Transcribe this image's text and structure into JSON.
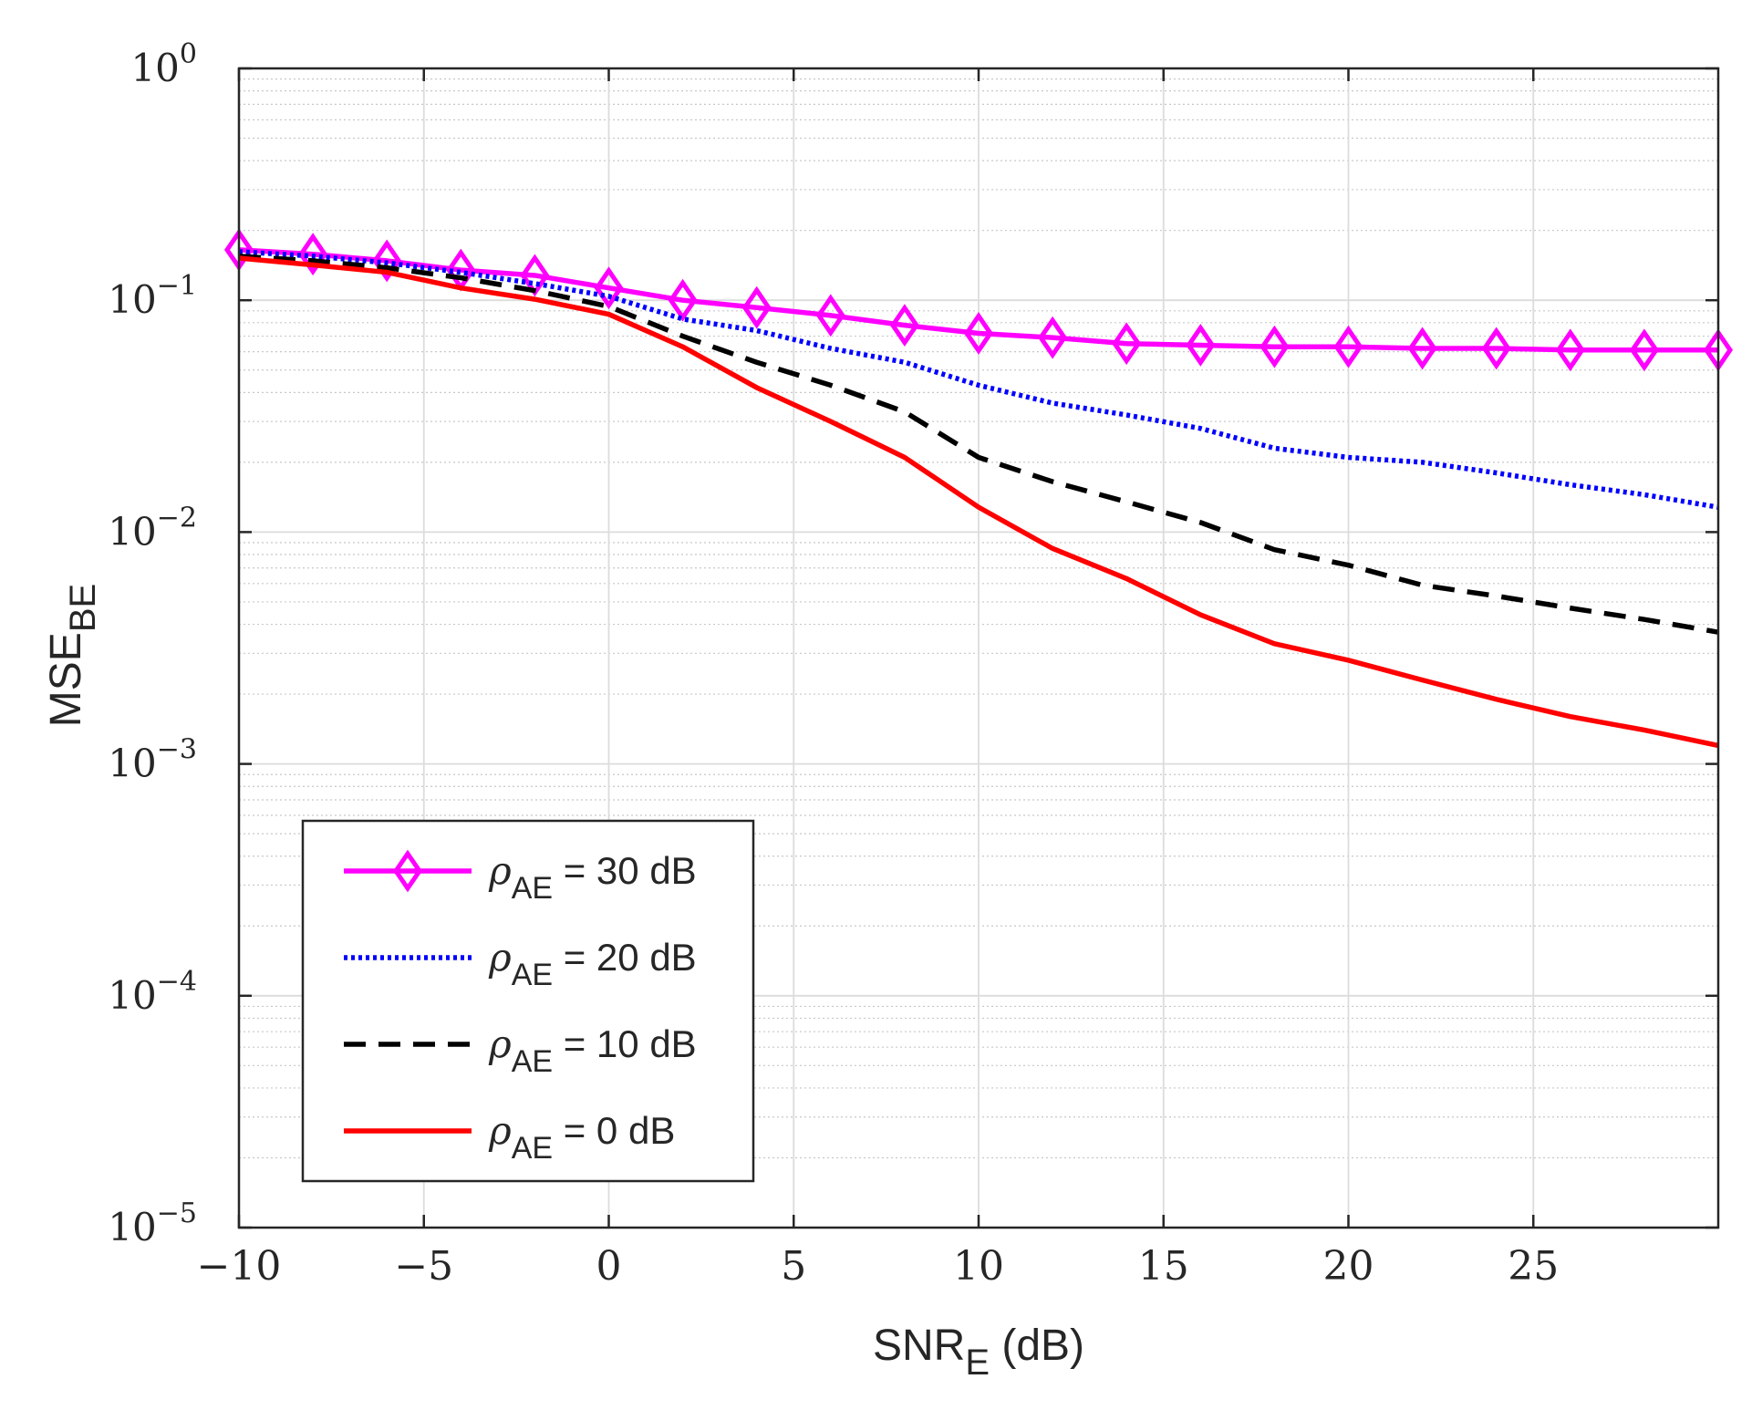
{
  "chart_data": {
    "type": "line",
    "yscale": "log",
    "xlim": [
      -10,
      30
    ],
    "ylim": [
      1e-05,
      1
    ],
    "grid": true,
    "minor_grid": true,
    "xlabel": {
      "main": "SNR",
      "sub": "E",
      "suffix": " (dB)"
    },
    "ylabel": {
      "main": "MSE",
      "sub": "BE"
    },
    "xticks": [
      -10,
      -5,
      0,
      5,
      10,
      15,
      20,
      25
    ],
    "xtick_labels": [
      "−10",
      "−5",
      "0",
      "5",
      "10",
      "15",
      "20",
      "25"
    ],
    "yticks": [
      1e-05,
      0.0001,
      0.001,
      0.01,
      0.1,
      1
    ],
    "ytick_labels": [
      {
        "base": "10",
        "exp": "−5"
      },
      {
        "base": "10",
        "exp": "−4"
      },
      {
        "base": "10",
        "exp": "−3"
      },
      {
        "base": "10",
        "exp": "−2"
      },
      {
        "base": "10",
        "exp": "−1"
      },
      {
        "base": "10",
        "exp": "0"
      }
    ],
    "x": [
      -10,
      -8,
      -6,
      -4,
      -2,
      0,
      2,
      4,
      6,
      8,
      10,
      12,
      14,
      16,
      18,
      20,
      22,
      24,
      26,
      28,
      30
    ],
    "legend_position": "bottom-left",
    "series": [
      {
        "name": "ρAE = 30 dB",
        "legend": {
          "sym": "ρ",
          "sub": "AE",
          "text": " = 30 dB"
        },
        "color": "#ff00ff",
        "style": "solid-diamond",
        "values": [
          0.165,
          0.158,
          0.148,
          0.135,
          0.128,
          0.113,
          0.1,
          0.093,
          0.086,
          0.078,
          0.072,
          0.069,
          0.065,
          0.064,
          0.063,
          0.063,
          0.062,
          0.062,
          0.061,
          0.061,
          0.061
        ]
      },
      {
        "name": "ρAE = 20 dB",
        "legend": {
          "sym": "ρ",
          "sub": "AE",
          "text": " = 20 dB"
        },
        "color": "#0000ff",
        "style": "dotted",
        "values": [
          0.162,
          0.155,
          0.145,
          0.132,
          0.118,
          0.104,
          0.083,
          0.074,
          0.062,
          0.054,
          0.043,
          0.036,
          0.032,
          0.028,
          0.023,
          0.021,
          0.02,
          0.018,
          0.016,
          0.0145,
          0.0128
        ]
      },
      {
        "name": "ρAE = 10 dB",
        "legend": {
          "sym": "ρ",
          "sub": "AE",
          "text": " = 10 dB"
        },
        "color": "#000000",
        "style": "dashed",
        "values": [
          0.155,
          0.148,
          0.138,
          0.125,
          0.11,
          0.094,
          0.07,
          0.054,
          0.043,
          0.033,
          0.021,
          0.0165,
          0.0135,
          0.011,
          0.0084,
          0.0072,
          0.0059,
          0.0053,
          0.0047,
          0.0042,
          0.0037
        ]
      },
      {
        "name": "ρAE = 0 dB",
        "legend": {
          "sym": "ρ",
          "sub": "AE",
          "text": " = 0 dB"
        },
        "color": "#ff0000",
        "style": "solid",
        "values": [
          0.152,
          0.142,
          0.132,
          0.113,
          0.101,
          0.087,
          0.063,
          0.042,
          0.03,
          0.021,
          0.0128,
          0.0085,
          0.0063,
          0.0044,
          0.0033,
          0.0028,
          0.0023,
          0.0019,
          0.0016,
          0.0014,
          0.0012
        ]
      }
    ]
  }
}
